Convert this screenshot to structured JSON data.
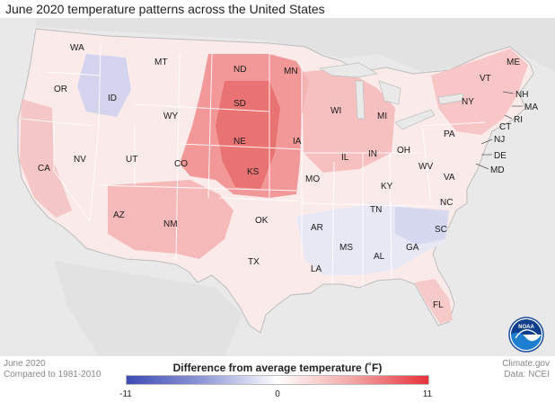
{
  "title": "June 2020 temperature patterns across the United States",
  "footer": {
    "date": "June 2020",
    "baseline": "Compared to 1981-2010",
    "credit": "Climate.gov",
    "source": "Data: NCEI"
  },
  "legend": {
    "title": "Difference from average temperature (˚F)",
    "min": "-11",
    "mid": "0",
    "max": "11",
    "colors": {
      "cold": "#3d4bb4",
      "neutral": "#ffffff",
      "warm": "#e5323a"
    }
  },
  "logo": {
    "name": "noaa-logo",
    "text": "NOAA"
  },
  "states": [
    {
      "abbr": "WA",
      "anomaly": 0
    },
    {
      "abbr": "OR",
      "anomaly": 0
    },
    {
      "abbr": "CA",
      "anomaly": 3
    },
    {
      "abbr": "NV",
      "anomaly": 0
    },
    {
      "abbr": "ID",
      "anomaly": -2
    },
    {
      "abbr": "MT",
      "anomaly": 0
    },
    {
      "abbr": "WY",
      "anomaly": 2
    },
    {
      "abbr": "UT",
      "anomaly": 0
    },
    {
      "abbr": "CO",
      "anomaly": 4
    },
    {
      "abbr": "AZ",
      "anomaly": 3
    },
    {
      "abbr": "NM",
      "anomaly": 4
    },
    {
      "abbr": "ND",
      "anomaly": 5
    },
    {
      "abbr": "SD",
      "anomaly": 6
    },
    {
      "abbr": "NE",
      "anomaly": 7
    },
    {
      "abbr": "KS",
      "anomaly": 6
    },
    {
      "abbr": "OK",
      "anomaly": 3
    },
    {
      "abbr": "TX",
      "anomaly": 1
    },
    {
      "abbr": "MN",
      "anomaly": 6
    },
    {
      "abbr": "IA",
      "anomaly": 5
    },
    {
      "abbr": "MO",
      "anomaly": 3
    },
    {
      "abbr": "AR",
      "anomaly": -1
    },
    {
      "abbr": "LA",
      "anomaly": -1
    },
    {
      "abbr": "WI",
      "anomaly": 3
    },
    {
      "abbr": "IL",
      "anomaly": 3
    },
    {
      "abbr": "MS",
      "anomaly": 0
    },
    {
      "abbr": "MI",
      "anomaly": 3
    },
    {
      "abbr": "IN",
      "anomaly": 2
    },
    {
      "abbr": "OH",
      "anomaly": 2
    },
    {
      "abbr": "KY",
      "anomaly": -1
    },
    {
      "abbr": "TN",
      "anomaly": -1
    },
    {
      "abbr": "AL",
      "anomaly": 0
    },
    {
      "abbr": "GA",
      "anomaly": -1
    },
    {
      "abbr": "FL",
      "anomaly": 2
    },
    {
      "abbr": "SC",
      "anomaly": -2
    },
    {
      "abbr": "NC",
      "anomaly": -2
    },
    {
      "abbr": "VA",
      "anomaly": 0
    },
    {
      "abbr": "WV",
      "anomaly": -1
    },
    {
      "abbr": "PA",
      "anomaly": 0
    },
    {
      "abbr": "NY",
      "anomaly": 2
    },
    {
      "abbr": "VT",
      "anomaly": 3
    },
    {
      "abbr": "NH",
      "anomaly": 3
    },
    {
      "abbr": "ME",
      "anomaly": 3
    },
    {
      "abbr": "MA",
      "anomaly": 3
    },
    {
      "abbr": "RI",
      "anomaly": 3
    },
    {
      "abbr": "CT",
      "anomaly": 3
    },
    {
      "abbr": "NJ",
      "anomaly": 3
    },
    {
      "abbr": "DE",
      "anomaly": 2
    },
    {
      "abbr": "MD",
      "anomaly": 2
    }
  ]
}
